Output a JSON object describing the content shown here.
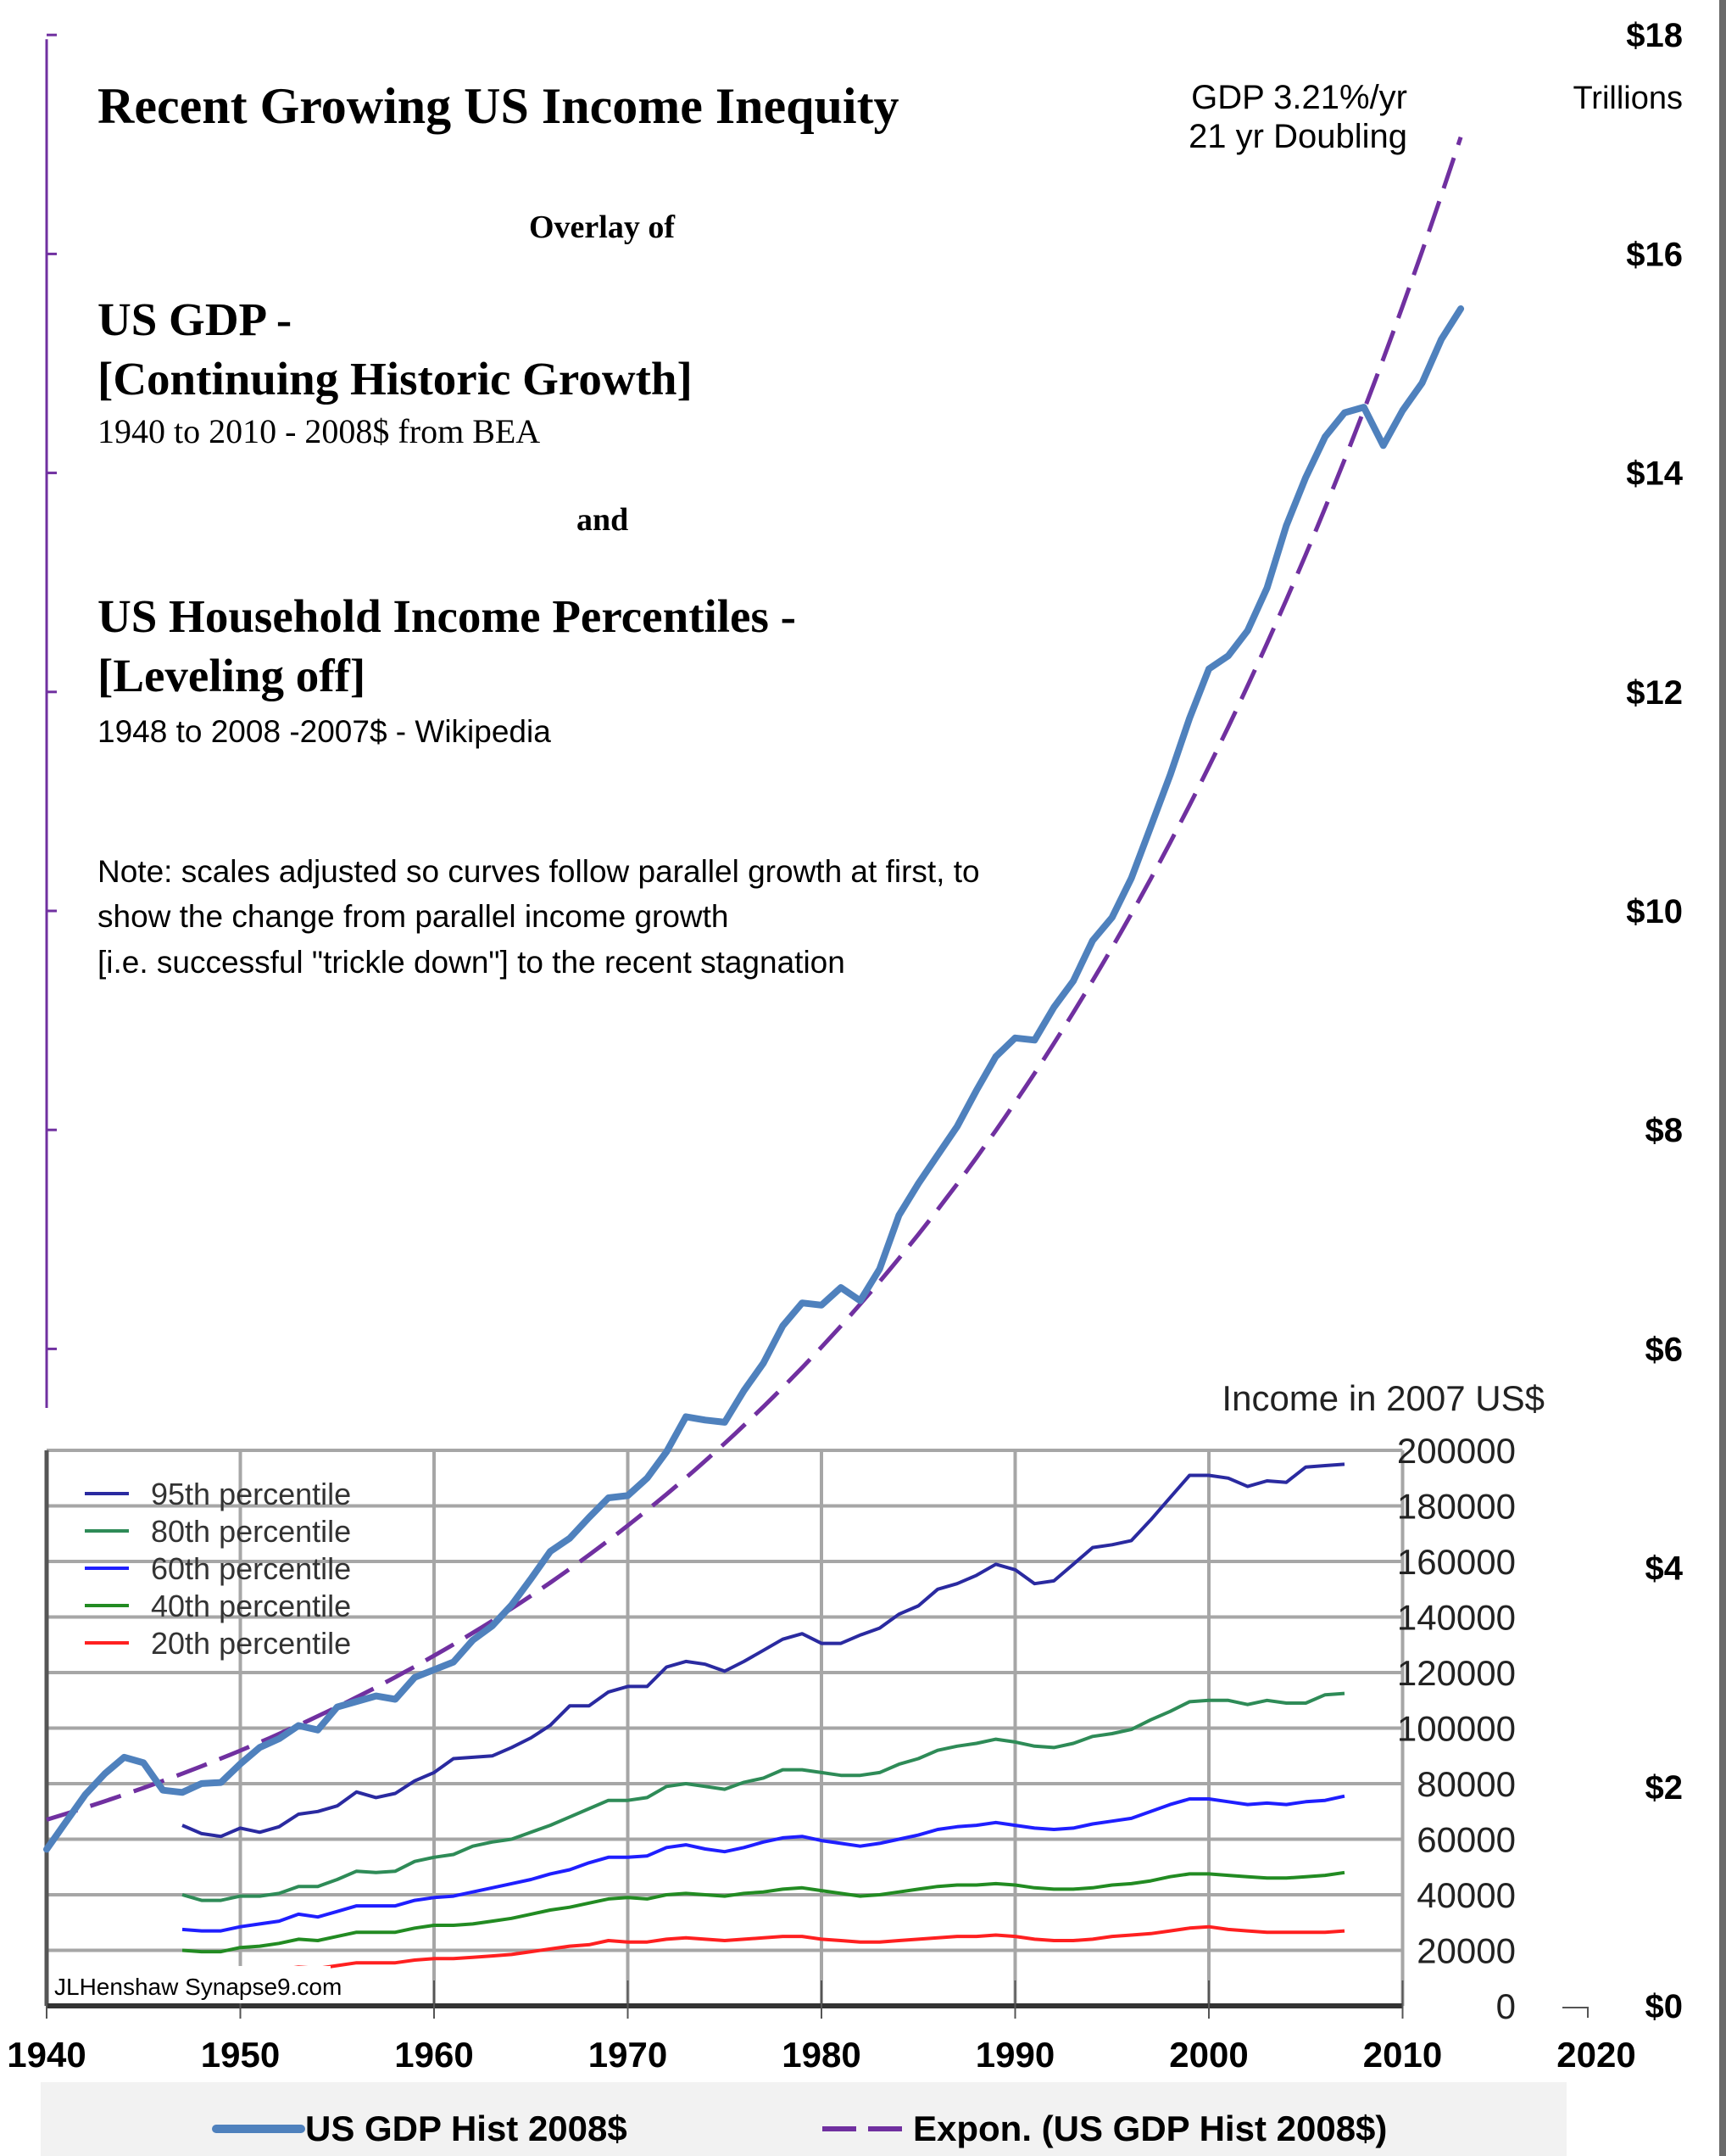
{
  "header": {
    "title": "Recent Growing US Income Inequity",
    "overlay_of": "Overlay of",
    "gdp_heading_line1": "US GDP -",
    "gdp_heading_line2": "[Continuing Historic Growth]",
    "gdp_source": "1940 to 2010 - 2008$ from BEA",
    "and": "and",
    "income_heading_line1": "US Household Income Percentiles -",
    "income_heading_line2": "[Leveling off]",
    "income_source": "1948 to 2008 -2007$ - Wikipedia",
    "note_line1": "Note: scales adjusted so curves follow parallel growth at first, to",
    "note_line2": "show the change from parallel income growth",
    "note_line3": "[i.e. successful \"trickle down\"] to the recent stagnation",
    "trend_annotation_line1": "GDP 3.21%/yr",
    "trend_annotation_line2": "21 yr Doubling",
    "watermark": "JLHenshaw  Synapse9.com"
  },
  "colors": {
    "gdp": "#4f81bd",
    "trend": "#7030a0",
    "p95": "#2a2aa0",
    "p80": "#2e8b57",
    "p60": "#1f1fff",
    "p40": "#228b22",
    "p20": "#ff2020",
    "grid": "#a6a6a6",
    "legend_bg": "#f2f2f2"
  },
  "chart_data": [
    {
      "type": "line",
      "title": "Recent Growing US Income Inequity",
      "xlabel": "",
      "ylabel": "Trillions",
      "y_axis_side": "right",
      "xlim": [
        1940,
        2020
      ],
      "ylim": [
        0,
        18
      ],
      "x_ticks": [
        "1940",
        "1950",
        "1960",
        "1970",
        "1980",
        "1990",
        "2000",
        "2010",
        "2020"
      ],
      "x_tick_values": [
        1940,
        1950,
        1960,
        1970,
        1980,
        1990,
        2000,
        2010,
        2020
      ],
      "y_ticks": [
        "$0",
        "$2",
        "$4",
        "$6",
        "$8",
        "$10",
        "$12",
        "$14",
        "$16",
        "$18"
      ],
      "y_tick_values": [
        0,
        2,
        4,
        6,
        8,
        10,
        12,
        14,
        16,
        18
      ],
      "y_unit_label": "Trillions",
      "legend_position": "bottom",
      "series": [
        {
          "name": "US GDP Hist 2008$",
          "style": "solid",
          "x": [
            1940,
            1941,
            1942,
            1943,
            1944,
            1945,
            1946,
            1947,
            1948,
            1949,
            1950,
            1951,
            1952,
            1953,
            1954,
            1955,
            1956,
            1957,
            1958,
            1959,
            1960,
            1961,
            1962,
            1963,
            1964,
            1965,
            1966,
            1967,
            1968,
            1969,
            1970,
            1971,
            1972,
            1973,
            1974,
            1975,
            1976,
            1977,
            1978,
            1979,
            1980,
            1981,
            1982,
            1983,
            1984,
            1985,
            1986,
            1987,
            1988,
            1989,
            1990,
            1991,
            1992,
            1993,
            1994,
            1995,
            1996,
            1997,
            1998,
            1999,
            2000,
            2001,
            2002,
            2003,
            2004,
            2005,
            2006,
            2007,
            2008,
            2009,
            2010,
            2011,
            2012,
            2013
          ],
          "values": [
            1.43,
            1.68,
            1.93,
            2.12,
            2.27,
            2.22,
            1.97,
            1.95,
            2.03,
            2.04,
            2.21,
            2.36,
            2.44,
            2.56,
            2.52,
            2.73,
            2.78,
            2.83,
            2.8,
            3.0,
            3.07,
            3.14,
            3.34,
            3.47,
            3.66,
            3.9,
            4.15,
            4.27,
            4.46,
            4.64,
            4.66,
            4.82,
            5.06,
            5.38,
            5.35,
            5.33,
            5.62,
            5.87,
            6.21,
            6.42,
            6.4,
            6.56,
            6.44,
            6.73,
            7.22,
            7.51,
            7.77,
            8.03,
            8.36,
            8.67,
            8.84,
            8.82,
            9.12,
            9.36,
            9.73,
            9.94,
            10.3,
            10.77,
            11.24,
            11.76,
            12.21,
            12.33,
            12.56,
            12.95,
            13.52,
            13.96,
            14.33,
            14.55,
            14.6,
            14.25,
            14.57,
            14.82,
            15.22,
            15.5
          ]
        },
        {
          "name": "Expon. (US GDP Hist 2008$)",
          "style": "dashed",
          "growth_rate_pct_per_yr": 3.21,
          "doubling_years": 21,
          "x": [
            1940,
            1945,
            1950,
            1955,
            1960,
            1965,
            1970,
            1975,
            1980,
            1985,
            1990,
            1995,
            2000,
            2005,
            2010,
            2013
          ],
          "values": [
            1.7,
            1.99,
            2.33,
            2.73,
            3.19,
            3.74,
            4.38,
            5.13,
            6.0,
            7.03,
            8.23,
            9.64,
            11.29,
            13.22,
            15.48,
            17.04
          ]
        }
      ]
    },
    {
      "type": "line",
      "title": "Income in 2007 US$",
      "xlabel": "",
      "ylabel": "Income in 2007 US$",
      "y_axis_side": "right",
      "xlim": [
        1940,
        2010
      ],
      "ylim": [
        0,
        200000
      ],
      "y_ticks": [
        "0",
        "20000",
        "40000",
        "60000",
        "80000",
        "100000",
        "120000",
        "140000",
        "160000",
        "180000",
        "200000"
      ],
      "y_tick_values": [
        0,
        20000,
        40000,
        60000,
        80000,
        100000,
        120000,
        140000,
        160000,
        180000,
        200000
      ],
      "grid": true,
      "legend_position": "top-left",
      "x": [
        1947,
        1948,
        1949,
        1950,
        1951,
        1952,
        1953,
        1954,
        1955,
        1956,
        1957,
        1958,
        1959,
        1960,
        1961,
        1962,
        1963,
        1964,
        1965,
        1966,
        1967,
        1968,
        1969,
        1970,
        1971,
        1972,
        1973,
        1974,
        1975,
        1976,
        1977,
        1978,
        1979,
        1980,
        1981,
        1982,
        1983,
        1984,
        1985,
        1986,
        1987,
        1988,
        1989,
        1990,
        1991,
        1992,
        1993,
        1994,
        1995,
        1996,
        1997,
        1998,
        1999,
        2000,
        2001,
        2002,
        2003,
        2004,
        2005,
        2006,
        2007
      ],
      "series": [
        {
          "name": "95th percentile",
          "values": [
            65000,
            62000,
            61000,
            64000,
            62500,
            64500,
            69000,
            70000,
            72000,
            77000,
            75000,
            76500,
            81000,
            84000,
            89000,
            89500,
            90000,
            93000,
            96500,
            101000,
            108000,
            108000,
            113000,
            115000,
            115000,
            122000,
            124000,
            123000,
            120500,
            124000,
            128000,
            132000,
            134000,
            130500,
            130500,
            133500,
            136000,
            141000,
            144000,
            150000,
            152000,
            155000,
            159000,
            157000,
            152000,
            153000,
            159000,
            165000,
            166000,
            167500,
            175000,
            183000,
            191000,
            191000,
            190000,
            187000,
            189000,
            188500,
            194000,
            194500,
            195000
          ]
        },
        {
          "name": "80th percentile",
          "values": [
            40000,
            38000,
            38000,
            39500,
            39500,
            40500,
            43000,
            43000,
            45500,
            48500,
            48000,
            48500,
            52000,
            53500,
            54500,
            57500,
            59000,
            60000,
            62500,
            65000,
            68000,
            71000,
            74000,
            74000,
            75000,
            79000,
            80000,
            79000,
            78000,
            80500,
            82000,
            85000,
            85000,
            84000,
            83000,
            83000,
            84000,
            87000,
            89000,
            92000,
            93500,
            94500,
            96000,
            95000,
            93500,
            93000,
            94500,
            97000,
            98000,
            99500,
            103000,
            106000,
            109500,
            110000,
            110000,
            108500,
            110000,
            109000,
            109000,
            112000,
            112500
          ]
        },
        {
          "name": "60th percentile",
          "values": [
            27500,
            27000,
            27000,
            28500,
            29500,
            30500,
            33000,
            32000,
            34000,
            36000,
            36000,
            36000,
            38000,
            39000,
            39500,
            41000,
            42500,
            44000,
            45500,
            47500,
            49000,
            51500,
            53500,
            53500,
            54000,
            57000,
            58000,
            56500,
            55500,
            57000,
            59000,
            60500,
            61000,
            59500,
            58500,
            57500,
            58500,
            60000,
            61500,
            63500,
            64500,
            65000,
            66000,
            65000,
            64000,
            63500,
            64000,
            65500,
            66500,
            67500,
            70000,
            72500,
            74500,
            74500,
            73500,
            72500,
            73000,
            72500,
            73500,
            74000,
            75500
          ]
        },
        {
          "name": "40th percentile",
          "values": [
            20000,
            19500,
            19500,
            21000,
            21500,
            22500,
            24000,
            23500,
            25000,
            26500,
            26500,
            26500,
            28000,
            29000,
            29000,
            29500,
            30500,
            31500,
            33000,
            34500,
            35500,
            37000,
            38500,
            39000,
            38500,
            40000,
            40500,
            40000,
            39500,
            40500,
            41000,
            42000,
            42500,
            41500,
            40500,
            39500,
            40000,
            41000,
            42000,
            43000,
            43500,
            43500,
            44000,
            43500,
            42500,
            42000,
            42000,
            42500,
            43500,
            44000,
            45000,
            46500,
            47500,
            47500,
            47000,
            46500,
            46000,
            46000,
            46500,
            47000,
            48000
          ]
        },
        {
          "name": "20th percentile",
          "values": [
            12000,
            11500,
            11000,
            12000,
            12500,
            13000,
            14000,
            13500,
            14500,
            15500,
            15500,
            15500,
            16500,
            17000,
            17000,
            17500,
            18000,
            18500,
            19500,
            20500,
            21500,
            22000,
            23500,
            23000,
            23000,
            24000,
            24500,
            24000,
            23500,
            24000,
            24500,
            25000,
            25000,
            24000,
            23500,
            23000,
            23000,
            23500,
            24000,
            24500,
            25000,
            25000,
            25500,
            25000,
            24000,
            23500,
            23500,
            24000,
            25000,
            25500,
            26000,
            27000,
            28000,
            28500,
            27500,
            27000,
            26500,
            26500,
            26500,
            26500,
            27000
          ]
        }
      ]
    }
  ]
}
